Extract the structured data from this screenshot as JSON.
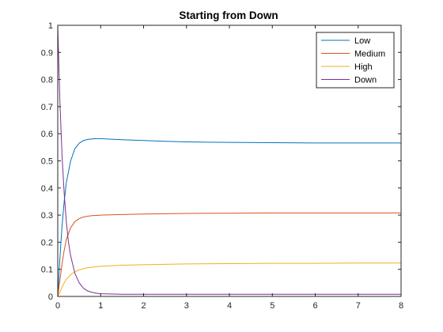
{
  "chart_data": {
    "type": "line",
    "title": "Starting from Down",
    "xlabel": "",
    "ylabel": "",
    "xlim": [
      0,
      8
    ],
    "ylim": [
      0,
      1
    ],
    "xticks": [
      0,
      1,
      2,
      3,
      4,
      5,
      6,
      7,
      8
    ],
    "yticks": [
      0,
      0.1,
      0.2,
      0.3,
      0.4,
      0.5,
      0.6,
      0.7,
      0.8,
      0.9,
      1
    ],
    "ytick_labels": [
      "0",
      "0.1",
      "0.2",
      "0.3",
      "0.4",
      "0.5",
      "0.6",
      "0.7",
      "0.8",
      "0.9",
      "1"
    ],
    "grid": false,
    "legend_position": "top-right",
    "series": [
      {
        "name": "Low",
        "color": "#0072BD",
        "x": [
          0,
          0.05,
          0.1,
          0.15,
          0.2,
          0.3,
          0.4,
          0.5,
          0.6,
          0.7,
          0.8,
          0.9,
          1.0,
          1.2,
          1.5,
          2,
          2.5,
          3,
          3.5,
          4,
          5,
          6,
          7,
          8
        ],
        "y": [
          0,
          0.14,
          0.26,
          0.35,
          0.42,
          0.5,
          0.545,
          0.565,
          0.575,
          0.579,
          0.581,
          0.582,
          0.582,
          0.58,
          0.578,
          0.575,
          0.572,
          0.57,
          0.569,
          0.568,
          0.567,
          0.566,
          0.566,
          0.566
        ]
      },
      {
        "name": "Medium",
        "color": "#D95319",
        "x": [
          0,
          0.05,
          0.1,
          0.15,
          0.2,
          0.3,
          0.4,
          0.5,
          0.6,
          0.7,
          0.8,
          0.9,
          1.0,
          1.5,
          2,
          3,
          4,
          5,
          6,
          7,
          8
        ],
        "y": [
          0,
          0.06,
          0.12,
          0.17,
          0.21,
          0.253,
          0.276,
          0.287,
          0.293,
          0.296,
          0.298,
          0.299,
          0.3,
          0.302,
          0.304,
          0.306,
          0.307,
          0.308,
          0.308,
          0.308,
          0.308
        ]
      },
      {
        "name": "High",
        "color": "#EDB120",
        "x": [
          0,
          0.05,
          0.1,
          0.15,
          0.2,
          0.3,
          0.4,
          0.5,
          0.7,
          1.0,
          1.5,
          2,
          3,
          4,
          5,
          6,
          7,
          8
        ],
        "y": [
          0,
          0.015,
          0.035,
          0.05,
          0.063,
          0.08,
          0.091,
          0.098,
          0.106,
          0.111,
          0.115,
          0.117,
          0.12,
          0.121,
          0.122,
          0.122,
          0.123,
          0.123
        ]
      },
      {
        "name": "Down",
        "color": "#7E2F8E",
        "x": [
          0,
          0.05,
          0.1,
          0.15,
          0.2,
          0.25,
          0.3,
          0.4,
          0.5,
          0.6,
          0.7,
          0.8,
          0.9,
          1.0,
          1.2,
          1.5,
          2,
          3,
          4,
          5,
          6,
          7,
          8
        ],
        "y": [
          1,
          0.72,
          0.52,
          0.38,
          0.275,
          0.2,
          0.15,
          0.085,
          0.05,
          0.03,
          0.02,
          0.015,
          0.012,
          0.01,
          0.009,
          0.008,
          0.008,
          0.008,
          0.008,
          0.008,
          0.008,
          0.008,
          0.008
        ]
      }
    ]
  }
}
